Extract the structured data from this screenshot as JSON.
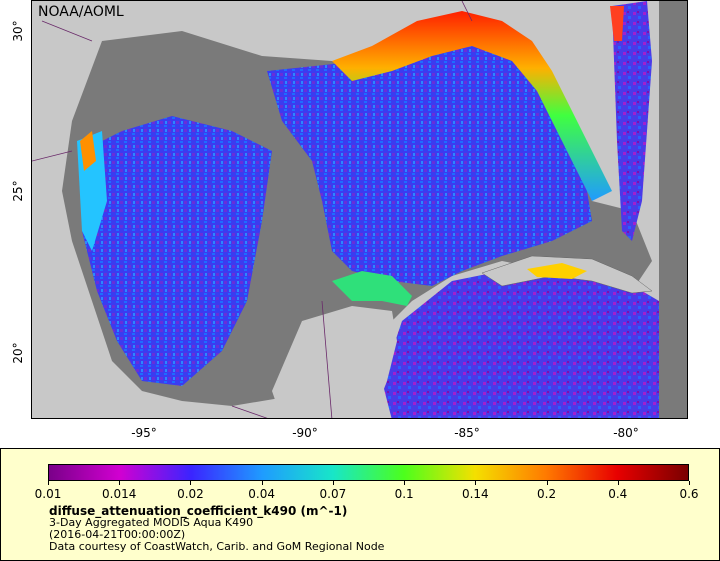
{
  "credit": "NOAA/AOML",
  "y_ticks": [
    {
      "label": "30°",
      "lat": 30
    },
    {
      "label": "25°",
      "lat": 25
    },
    {
      "label": "20°",
      "lat": 20
    }
  ],
  "x_ticks": [
    {
      "label": "-95°",
      "lon": -95
    },
    {
      "label": "-90°",
      "lon": -90
    },
    {
      "label": "-85°",
      "lon": -85
    },
    {
      "label": "-80°",
      "lon": -80
    }
  ],
  "colorbar": {
    "ticks": [
      "0.01",
      "0.014",
      "0.02",
      "0.04",
      "0.07",
      "0.1",
      "0.14",
      "0.2",
      "0.4",
      "0.6"
    ],
    "colors": [
      "#7a0089",
      "#d100d1",
      "#3b24ff",
      "#1f9bff",
      "#18e6c8",
      "#4cff1c",
      "#f4e000",
      "#ff7a00",
      "#e80000",
      "#7a0000"
    ]
  },
  "legend": {
    "variable": "diffuse_attenuation_coefficient_k490 (m^-1)",
    "line1": "3-Day Aggregated MODIS Aqua K490",
    "line2": "(2016-04-21T00:00:00Z)",
    "line3": "Data courtesy of CoastWatch, Carib. and GoM Regional Node"
  },
  "colors": {
    "land": "#c8c8c8",
    "nodata": "#7a7a7a",
    "legend_bg": "#ffffcc"
  }
}
